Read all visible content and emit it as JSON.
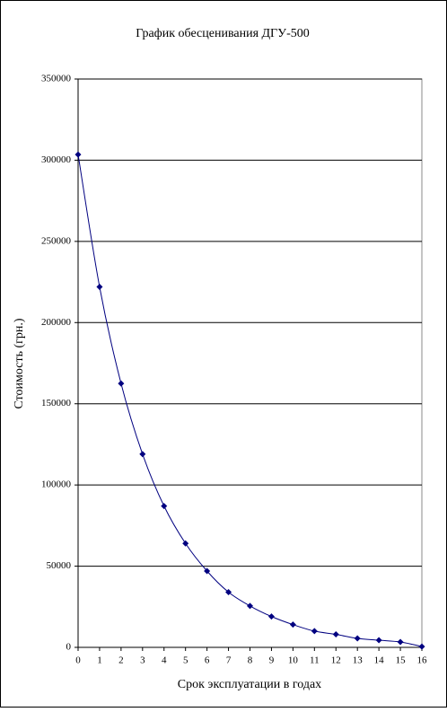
{
  "chart_data": {
    "type": "line",
    "title": "График обесценивания ДГУ-500",
    "x_label": "Срок эксплуатации в годах",
    "y_label": "Стоимость (грн.)",
    "x": [
      0,
      1,
      2,
      3,
      4,
      5,
      6,
      7,
      8,
      9,
      10,
      11,
      12,
      13,
      14,
      15,
      16
    ],
    "series": [
      {
        "name": "Стоимость",
        "color": "#000080",
        "values": [
          303500,
          222000,
          162500,
          119000,
          87000,
          64000,
          47000,
          34000,
          25500,
          19000,
          14000,
          10000,
          8000,
          5500,
          4400,
          3300,
          500
        ]
      }
    ],
    "xlim": [
      0,
      16
    ],
    "xticks": [
      0,
      1,
      2,
      3,
      4,
      5,
      6,
      7,
      8,
      9,
      10,
      11,
      12,
      13,
      14,
      15,
      16
    ],
    "ylim": [
      0,
      350000
    ],
    "yticks": [
      0,
      50000,
      100000,
      150000,
      200000,
      250000,
      300000,
      350000
    ],
    "grid": true,
    "legend": false
  }
}
